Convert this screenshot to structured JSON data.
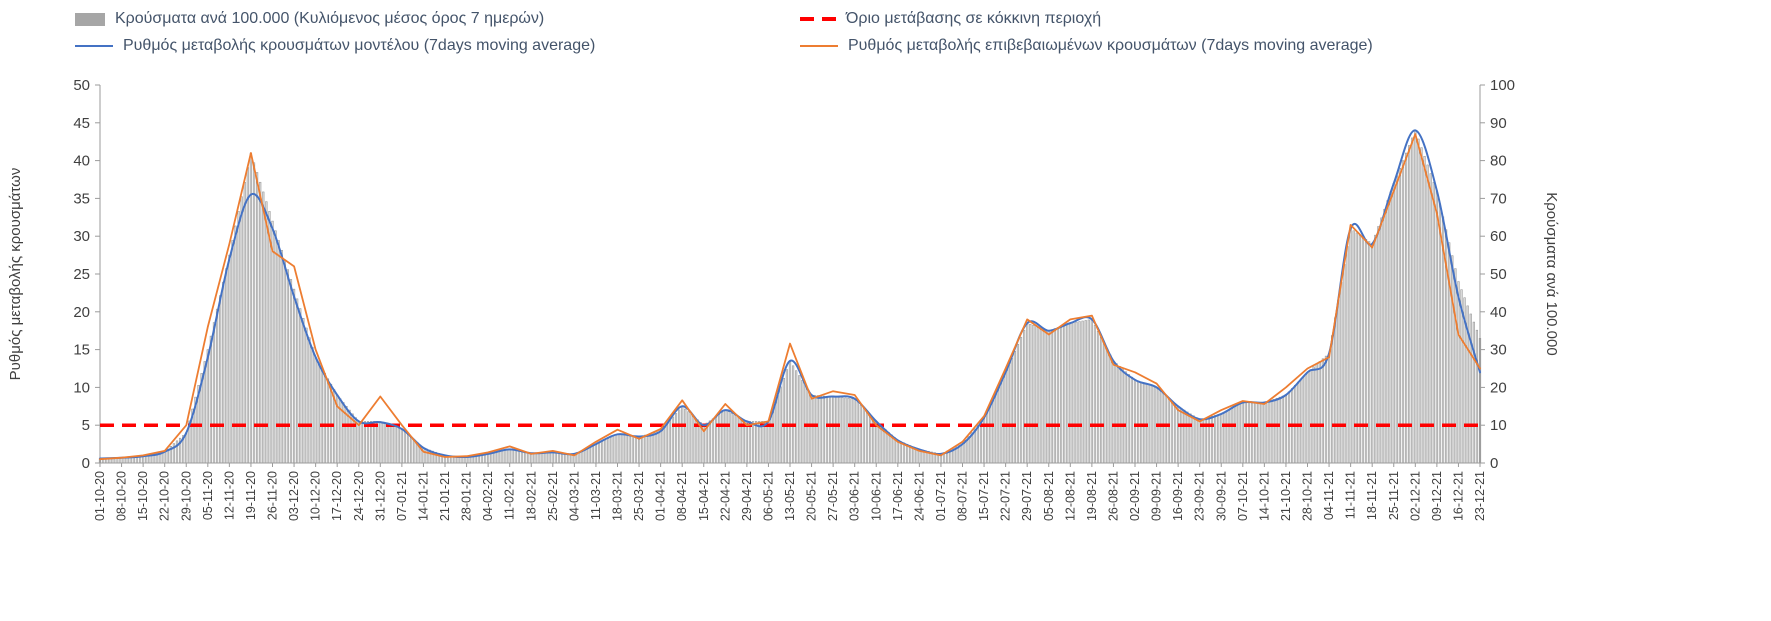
{
  "page": {
    "background": "#ffffff"
  },
  "legend": {
    "items": [
      {
        "label": "Κρούσματα ανά 100.000 (Κυλιόμενος μέσος όρος 7 ημερών)",
        "swatch": "bar",
        "color": "#a6a6a6"
      },
      {
        "label": "Όριο μετάβασης σε κόκκινη περιοχή",
        "swatch": "dashed-line",
        "color": "#ff0000"
      },
      {
        "label": "Ρυθμός μεταβολής κρουσμάτων μοντέλου (7days moving average)",
        "swatch": "line",
        "color": "#4472c4"
      },
      {
        "label": "Ρυθμός μεταβολής επιβεβαιωμένων κρουσμάτων (7days moving average)",
        "swatch": "line",
        "color": "#ed7d31"
      }
    ]
  },
  "chart_data": {
    "type": "combo",
    "note": "Weekly x ticks; bar series is daily in source, values below are weekly samples read from the plot. Lines use left axis, bars use right axis.",
    "grid": false,
    "legend_position": "top",
    "left_axis": {
      "label": "Ρυθμός μεταβολής κρουσμάτων",
      "min": 0,
      "max": 50,
      "tick_step": 5
    },
    "right_axis": {
      "label": "Κρούσματα ανά 100.000",
      "min": 0,
      "max": 100,
      "tick_step": 10
    },
    "x_tick_labels": [
      "01-10-20",
      "08-10-20",
      "15-10-20",
      "22-10-20",
      "29-10-20",
      "05-11-20",
      "12-11-20",
      "19-11-20",
      "26-11-20",
      "03-12-20",
      "10-12-20",
      "17-12-20",
      "24-12-20",
      "31-12-20",
      "07-01-21",
      "14-01-21",
      "21-01-21",
      "28-01-21",
      "04-02-21",
      "11-02-21",
      "18-02-21",
      "25-02-21",
      "04-03-21",
      "11-03-21",
      "18-03-21",
      "25-03-21",
      "01-04-21",
      "08-04-21",
      "15-04-21",
      "22-04-21",
      "29-04-21",
      "06-05-21",
      "13-05-21",
      "20-05-21",
      "27-05-21",
      "03-06-21",
      "10-06-21",
      "17-06-21",
      "24-06-21",
      "01-07-21",
      "08-07-21",
      "15-07-21",
      "22-07-21",
      "29-07-21",
      "05-08-21",
      "12-08-21",
      "19-08-21",
      "26-08-21",
      "02-09-21",
      "09-09-21",
      "16-09-21",
      "23-09-21",
      "30-09-21",
      "07-10-21",
      "14-10-21",
      "21-10-21",
      "28-10-21",
      "04-11-21",
      "11-11-21",
      "18-11-21",
      "25-11-21",
      "02-12-21",
      "09-12-21",
      "16-12-21",
      "23-12-21"
    ],
    "series": [
      {
        "key": "cases-per-100k-bars",
        "name": "Κρούσματα ανά 100.000 (Κυλιόμενος μέσος όρος 7 ημερών)",
        "type": "bar",
        "axis": "right",
        "color": "#d9d9d9",
        "border_color": "#8f8f8f",
        "values": [
          1.2,
          1.4,
          1.8,
          3,
          8,
          30,
          55,
          82,
          64,
          46,
          28,
          18,
          11,
          11,
          9,
          4,
          2,
          1.6,
          2.4,
          3.6,
          2.6,
          2.8,
          2.4,
          5,
          7.6,
          7,
          8.4,
          15,
          10,
          14,
          11,
          11,
          27,
          18,
          17.5,
          17,
          11,
          6,
          3.6,
          2.4,
          5,
          12,
          24,
          37,
          35,
          37,
          38,
          27,
          22,
          20,
          15,
          11.5,
          13,
          16,
          16,
          18,
          24,
          29,
          62,
          58,
          74,
          88,
          72,
          48,
          33
        ]
      },
      {
        "key": "model-line",
        "name": "Ρυθμός μεταβολής κρουσμάτων μοντέλου (7days moving average)",
        "type": "line",
        "axis": "left",
        "color": "#4472c4",
        "smooth": true,
        "width": 2,
        "values": [
          0.6,
          0.7,
          0.9,
          1.5,
          4,
          14,
          27,
          35.5,
          31,
          22,
          14,
          9,
          5.5,
          5.4,
          4.5,
          2,
          1,
          0.8,
          1.2,
          1.8,
          1.3,
          1.4,
          1.2,
          2.5,
          3.8,
          3.5,
          4.2,
          7.5,
          5,
          7,
          5.5,
          5.5,
          13.5,
          9,
          8.8,
          8.5,
          5.5,
          3,
          1.8,
          1.2,
          2.5,
          6,
          12,
          18.5,
          17.5,
          18.5,
          19,
          13.5,
          11,
          10,
          7.5,
          5.8,
          6.5,
          8,
          8,
          9,
          12,
          14.5,
          31,
          29,
          37,
          44,
          36,
          22,
          12
        ]
      },
      {
        "key": "confirmed-line",
        "name": "Ρυθμός μεταβολής επιβεβαιωμένων κρουσμάτων (7days moving average)",
        "type": "line",
        "axis": "left",
        "color": "#ed7d31",
        "smooth": false,
        "width": 1.8,
        "values": [
          0.5,
          0.7,
          1.0,
          1.6,
          5,
          18,
          29,
          41,
          28,
          26,
          15,
          7.5,
          5,
          8.8,
          5,
          1.5,
          0.8,
          0.9,
          1.4,
          2.2,
          1.2,
          1.6,
          1.0,
          2.8,
          4.4,
          3.2,
          4.5,
          8.3,
          4.2,
          7.8,
          5,
          5.5,
          15.8,
          8.5,
          9.5,
          9,
          5,
          2.8,
          1.6,
          1.0,
          2.8,
          6.2,
          12.5,
          19,
          17,
          19,
          19.5,
          13,
          12,
          10.5,
          7,
          5.5,
          7,
          8.2,
          7.8,
          10,
          12.5,
          14,
          31.5,
          28.5,
          36,
          43.5,
          33,
          17,
          12.5
        ]
      },
      {
        "key": "red-zone-threshold",
        "name": "Όριο μετάβασης σε κόκκινη περιοχή",
        "type": "threshold",
        "axis": "left",
        "color": "#ff0000",
        "value": 5
      }
    ]
  }
}
